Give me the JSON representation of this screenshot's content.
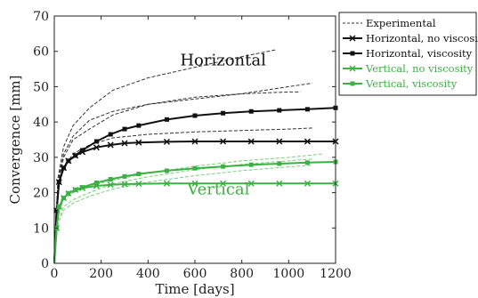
{
  "chart_data": {
    "type": "line",
    "xlabel": "Time [days]",
    "ylabel": "Convergence [mm]",
    "xlim": [
      0,
      1200
    ],
    "ylim": [
      0,
      70
    ],
    "xticks": [
      0,
      200,
      400,
      600,
      800,
      1000,
      1200
    ],
    "yticks": [
      0,
      10,
      20,
      30,
      40,
      50,
      60,
      70
    ],
    "grid": false,
    "legend_position": "top-right-outside",
    "annotations": [
      {
        "text": "Horizontal",
        "x": 720,
        "y": 56,
        "color": "#111111"
      },
      {
        "text": "Vertical",
        "x": 700,
        "y": 19.5,
        "color": "#3cb043"
      }
    ],
    "legend": [
      {
        "label": "Experimental",
        "color": "#333333",
        "style": "dashed",
        "marker": "none"
      },
      {
        "label": "Horizontal, no viscosit",
        "color": "#111111",
        "style": "solid",
        "marker": "x"
      },
      {
        "label": "Horizontal, viscosity",
        "color": "#111111",
        "style": "solid",
        "marker": "square"
      },
      {
        "label": "Vertical, no viscosity",
        "color": "#3cb043",
        "style": "solid",
        "marker": "x"
      },
      {
        "label": "Vertical, viscosity",
        "color": "#3cb043",
        "style": "solid",
        "marker": "square"
      }
    ],
    "series": [
      {
        "name": "Horizontal, no viscosit",
        "color": "#111111",
        "style": "solid",
        "marker": "x",
        "x": [
          0,
          10,
          20,
          40,
          60,
          90,
          120,
          180,
          240,
          300,
          360,
          480,
          600,
          720,
          840,
          960,
          1080,
          1200
        ],
        "y": [
          0,
          15,
          23,
          27,
          29,
          30.5,
          31.5,
          32.8,
          33.5,
          34,
          34.2,
          34.4,
          34.5,
          34.5,
          34.5,
          34.5,
          34.5,
          34.5
        ]
      },
      {
        "name": "Horizontal, viscosity",
        "color": "#111111",
        "style": "solid",
        "marker": "square",
        "x": [
          0,
          10,
          20,
          40,
          60,
          90,
          120,
          180,
          240,
          300,
          360,
          480,
          600,
          720,
          840,
          960,
          1080,
          1200
        ],
        "y": [
          0,
          15,
          23,
          27,
          29,
          30.5,
          32,
          34.5,
          36.5,
          38,
          39,
          40.7,
          41.8,
          42.5,
          43,
          43.3,
          43.6,
          44
        ]
      },
      {
        "name": "Vertical, no viscosity",
        "color": "#3cb043",
        "style": "solid",
        "marker": "x",
        "x": [
          0,
          10,
          20,
          40,
          60,
          90,
          120,
          180,
          240,
          300,
          360,
          480,
          600,
          720,
          840,
          960,
          1080,
          1200
        ],
        "y": [
          0,
          10,
          16,
          18.5,
          19.8,
          20.8,
          21.3,
          21.9,
          22.2,
          22.4,
          22.5,
          22.6,
          22.6,
          22.6,
          22.6,
          22.6,
          22.6,
          22.6
        ]
      },
      {
        "name": "Vertical, viscosity",
        "color": "#3cb043",
        "style": "solid",
        "marker": "square",
        "x": [
          0,
          10,
          20,
          40,
          60,
          90,
          120,
          180,
          240,
          300,
          360,
          480,
          600,
          720,
          840,
          960,
          1080,
          1200
        ],
        "y": [
          0,
          10,
          16,
          18.5,
          19.8,
          20.8,
          21.5,
          22.8,
          23.8,
          24.6,
          25.3,
          26.2,
          26.9,
          27.4,
          27.9,
          28.2,
          28.5,
          28.7
        ]
      },
      {
        "name": "Experimental (H1)",
        "color": "#333333",
        "style": "dashed",
        "marker": "none",
        "x": [
          0,
          15,
          40,
          80,
          150,
          250,
          400,
          600,
          800,
          950
        ],
        "y": [
          0,
          24,
          33,
          39,
          44,
          49,
          52.5,
          55.5,
          58.5,
          60.5
        ]
      },
      {
        "name": "Experimental (H2)",
        "color": "#333333",
        "style": "dashed",
        "marker": "none",
        "x": [
          0,
          15,
          40,
          80,
          150,
          250,
          400,
          600,
          800,
          1000,
          1100
        ],
        "y": [
          0,
          23,
          31,
          36,
          40.5,
          43,
          45,
          46.5,
          48,
          50,
          51
        ]
      },
      {
        "name": "Experimental (H3)",
        "color": "#333333",
        "style": "dashed",
        "marker": "none",
        "x": [
          0,
          15,
          40,
          80,
          150,
          250,
          400,
          600,
          800,
          1000,
          1050
        ],
        "y": [
          0,
          22,
          30,
          35,
          38,
          42,
          45,
          47,
          48,
          48.5,
          48.5
        ]
      },
      {
        "name": "Experimental (H4)",
        "color": "#333333",
        "style": "dashed",
        "marker": "none",
        "x": [
          0,
          15,
          40,
          80,
          150,
          250,
          400,
          600,
          800,
          1000,
          1100
        ],
        "y": [
          0,
          21,
          27,
          31,
          33.5,
          35.5,
          36.5,
          37.2,
          37.6,
          38,
          38.3
        ]
      },
      {
        "name": "Experimental (V1)",
        "color": "#7ccf7c",
        "style": "dashed",
        "marker": "none",
        "x": [
          0,
          15,
          40,
          80,
          150,
          250,
          400,
          600,
          800,
          1000,
          1150
        ],
        "y": [
          0,
          14,
          18,
          20,
          22,
          23.5,
          25.5,
          27.5,
          29,
          30,
          31
        ]
      },
      {
        "name": "Experimental (V2)",
        "color": "#7ccf7c",
        "style": "dashed",
        "marker": "none",
        "x": [
          0,
          15,
          40,
          80,
          150,
          250,
          400,
          600,
          800,
          1000,
          1100
        ],
        "y": [
          0,
          12,
          16,
          18,
          20,
          22.5,
          24.5,
          26.5,
          28,
          29,
          29.5
        ]
      },
      {
        "name": "Experimental (V3)",
        "color": "#7ccf7c",
        "style": "dashed",
        "marker": "none",
        "x": [
          0,
          15,
          40,
          80,
          150,
          250,
          400,
          600,
          800,
          1000,
          1100
        ],
        "y": [
          0,
          11,
          15,
          17,
          19,
          21,
          23,
          24.8,
          26.2,
          27.3,
          27.8
        ]
      }
    ]
  }
}
